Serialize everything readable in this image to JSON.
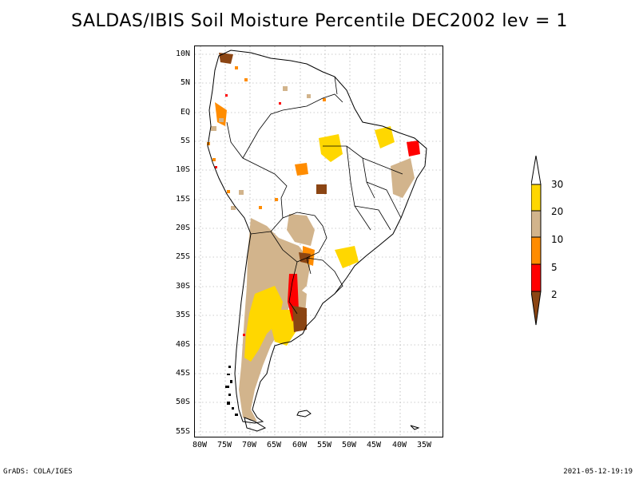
{
  "title": "SALDAS/IBIS Soil Moisture Percentile DEC2002 lev = 1",
  "lat_labels": [
    "10N",
    "5N",
    "EQ",
    "5S",
    "10S",
    "15S",
    "20S",
    "25S",
    "30S",
    "35S",
    "40S",
    "45S",
    "50S",
    "55S"
  ],
  "lon_labels": [
    "80W",
    "75W",
    "70W",
    "65W",
    "60W",
    "55W",
    "50W",
    "45W",
    "40W",
    "35W"
  ],
  "legend": {
    "labels": [
      "30",
      "20",
      "10",
      "5",
      "2"
    ],
    "colors": {
      "above30": "#ffffff",
      "c20_30": "#ffd700",
      "c10_20": "#d2b48c",
      "c5_10": "#ff8c00",
      "c2_5": "#ff0000",
      "below2": "#8b4513"
    }
  },
  "footer": {
    "left": "GrADS: COLA/IGES",
    "right": "2021-05-12-19:19"
  }
}
